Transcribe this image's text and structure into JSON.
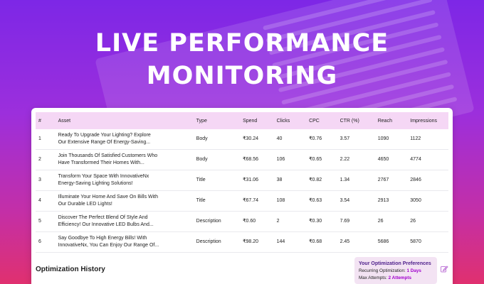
{
  "hero": {
    "line1": "LIVE PERFORMANCE",
    "line2": "MONITORING"
  },
  "table": {
    "headers": [
      "#",
      "Asset",
      "Type",
      "Spend",
      "Clicks",
      "CPC",
      "CTR (%)",
      "Reach",
      "Impressions"
    ],
    "rows": [
      {
        "idx": "1",
        "asset1": "Ready To Upgrade Your Lighting? Explore",
        "asset2": "Our Extensive Range Of Energy-Saving...",
        "type": "Body",
        "spend": "₹30.24",
        "clicks": "40",
        "cpc": "₹0.76",
        "ctr": "3.57",
        "reach": "1090",
        "impressions": "1122"
      },
      {
        "idx": "2",
        "asset1": "Join Thousands Of Satisfied Customers Who",
        "asset2": "Have Transformed Their Homes With...",
        "type": "Body",
        "spend": "₹68.56",
        "clicks": "106",
        "cpc": "₹0.65",
        "ctr": "2.22",
        "reach": "4650",
        "impressions": "4774"
      },
      {
        "idx": "3",
        "asset1": "Transform Your Space With InnovativeNx",
        "asset2": "Energy-Saving Lighting Solutions!",
        "type": "Title",
        "spend": "₹31.06",
        "clicks": "38",
        "cpc": "₹0.82",
        "ctr": "1.34",
        "reach": "2767",
        "impressions": "2846"
      },
      {
        "idx": "4",
        "asset1": "Illuminate Your Home And Save On Bills With",
        "asset2": "Our Durable LED Lights!",
        "type": "Title",
        "spend": "₹67.74",
        "clicks": "108",
        "cpc": "₹0.63",
        "ctr": "3.54",
        "reach": "2913",
        "impressions": "3050"
      },
      {
        "idx": "5",
        "asset1": "Discover The Perfect Blend Of Style And",
        "asset2": "Efficiency! Our Innovative LED Bulbs And...",
        "type": "Description",
        "spend": "₹0.60",
        "clicks": "2",
        "cpc": "₹0.30",
        "ctr": "7.69",
        "reach": "26",
        "impressions": "26"
      },
      {
        "idx": "6",
        "asset1": "Say Goodbye To High Energy Bills! With",
        "asset2": "InnovativeNx, You Can Enjoy Our Range Of...",
        "type": "Description",
        "spend": "₹98.20",
        "clicks": "144",
        "cpc": "₹0.68",
        "ctr": "2.45",
        "reach": "5686",
        "impressions": "5870"
      }
    ]
  },
  "optimization": {
    "title": "Optimization History",
    "prefs_title": "Your Optimization Preferences",
    "recurring_label": "Recurring Optimization:",
    "recurring_value": "1 Days",
    "attempts_label": "Max Attempts:",
    "attempts_value": "2 Attempts"
  },
  "colors": {
    "header_row": "#f5d7f5",
    "accent": "#a000cc"
  },
  "icons": {
    "edit": "edit-icon"
  }
}
